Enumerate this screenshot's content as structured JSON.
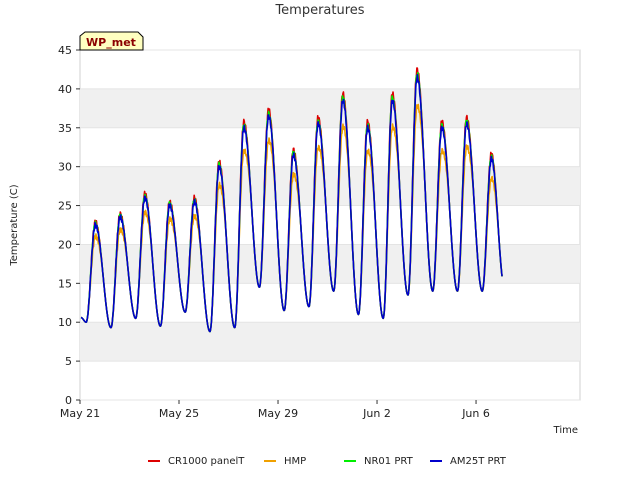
{
  "chart_data": {
    "type": "line",
    "title": "Temperatures",
    "xlabel": "Time",
    "ylabel": "Temperature (C)",
    "badge": "WP_met",
    "ylim": [
      0,
      45
    ],
    "xlim_days": [
      0,
      20.2
    ],
    "yticks": [
      0,
      5,
      10,
      15,
      20,
      25,
      30,
      35,
      40,
      45
    ],
    "xticks": [
      {
        "day": 0,
        "label": "May 21"
      },
      {
        "day": 4,
        "label": "May 25"
      },
      {
        "day": 8,
        "label": "May 29"
      },
      {
        "day": 12,
        "label": "Jun 2"
      },
      {
        "day": 16,
        "label": "Jun 6"
      }
    ],
    "grid": true,
    "legend_position": "bottom",
    "daily_extremes": [
      {
        "day": 0,
        "min": 10.0,
        "max": 22.5
      },
      {
        "day": 1,
        "min": 9.3,
        "max": 23.5
      },
      {
        "day": 2,
        "min": 10.5,
        "max": 26.0
      },
      {
        "day": 3,
        "min": 9.5,
        "max": 25.0
      },
      {
        "day": 4,
        "min": 11.3,
        "max": 25.5
      },
      {
        "day": 5,
        "min": 8.8,
        "max": 30.0
      },
      {
        "day": 6,
        "min": 9.3,
        "max": 35.0
      },
      {
        "day": 7,
        "min": 14.5,
        "max": 36.5
      },
      {
        "day": 8,
        "min": 11.5,
        "max": 31.5
      },
      {
        "day": 9,
        "min": 12.0,
        "max": 35.5
      },
      {
        "day": 10,
        "min": 14.0,
        "max": 38.5
      },
      {
        "day": 11,
        "min": 11.0,
        "max": 35.0
      },
      {
        "day": 12,
        "min": 10.5,
        "max": 38.5
      },
      {
        "day": 13,
        "min": 13.5,
        "max": 41.5
      },
      {
        "day": 14,
        "min": 14.0,
        "max": 35.0
      },
      {
        "day": 15,
        "min": 14.0,
        "max": 35.5
      },
      {
        "day": 16,
        "min": 14.0,
        "max": 31.0
      },
      {
        "day": 16.9,
        "min": 14.5,
        "max": 15.0
      }
    ],
    "series": [
      {
        "name": "CR1000 panelT",
        "color": "#dd0000",
        "offset": 0.8
      },
      {
        "name": "HMP",
        "color": "#f0a000",
        "offset": -3.0
      },
      {
        "name": "NR01 PRT",
        "color": "#00ee00",
        "offset": 0.3
      },
      {
        "name": "AM25T PRT",
        "color": "#0000cc",
        "offset": 0.0
      }
    ]
  }
}
